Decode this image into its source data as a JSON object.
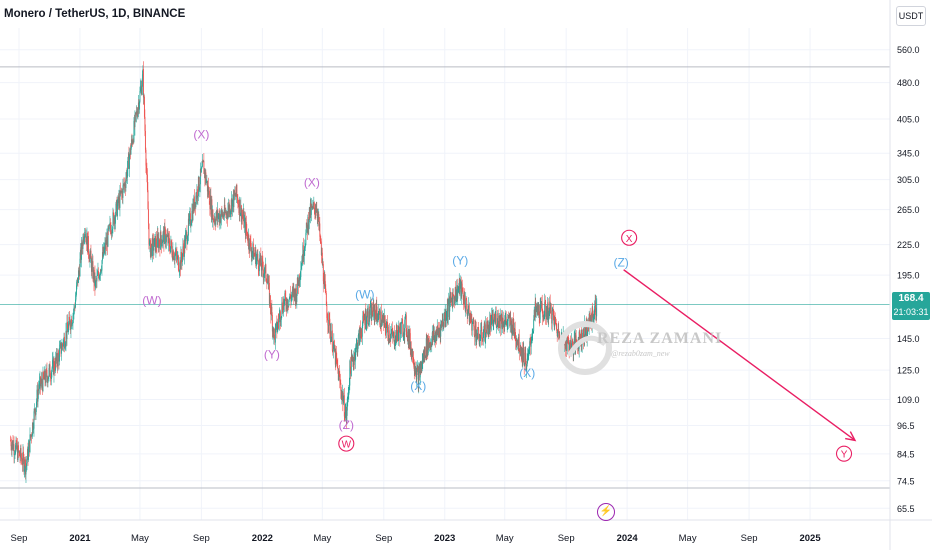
{
  "header": {
    "title": "Monero / TetherUS, 1D, BINANCE"
  },
  "price_axis": {
    "unit": "USDT",
    "ticks": [
      "560.0",
      "480.0",
      "405.0",
      "345.0",
      "305.0",
      "265.0",
      "225.0",
      "195.0",
      "145.0",
      "125.0",
      "109.0",
      "96.5",
      "84.5",
      "74.5",
      "65.5"
    ],
    "tick_values": [
      560,
      480,
      405,
      345,
      305,
      265,
      225,
      195,
      145,
      125,
      109,
      96.5,
      84.5,
      74.5,
      65.5
    ]
  },
  "time_axis": {
    "labels": [
      "Sep",
      "2021",
      "May",
      "Sep",
      "2022",
      "May",
      "Sep",
      "2023",
      "May",
      "Sep",
      "2024",
      "May",
      "Sep",
      "2025"
    ],
    "bold": [
      false,
      true,
      false,
      false,
      true,
      false,
      false,
      true,
      false,
      false,
      true,
      false,
      false,
      true
    ]
  },
  "last_price": {
    "value": "168.4",
    "countdown": "21:03:31",
    "number": 168.4
  },
  "watermark": {
    "title": "REZA ZAMANI",
    "subtitle": "@rezab0zam_new"
  },
  "colors": {
    "up": "#26a69a",
    "down": "#ef5350",
    "pink": "#e91e63",
    "blue": "#42a5f5",
    "purple": "#ab47bc"
  },
  "chart_data": {
    "type": "candlestick",
    "symbol": "XMRUSDT",
    "y_scale": "log",
    "ylim": [
      62,
      620
    ],
    "x_range": [
      "2020-07-25",
      "2025-06-10"
    ],
    "horizontal_levels": [
      517,
      170,
      72
    ],
    "price_path": [
      [
        "2020-08-15",
        90
      ],
      [
        "2020-09-15",
        80
      ],
      [
        "2020-10-10",
        115
      ],
      [
        "2020-11-15",
        130
      ],
      [
        "2020-12-20",
        165
      ],
      [
        "2021-01-10",
        245
      ],
      [
        "2021-02-01",
        185
      ],
      [
        "2021-03-01",
        240
      ],
      [
        "2021-04-01",
        300
      ],
      [
        "2021-05-07",
        495
      ],
      [
        "2021-05-20",
        220
      ],
      [
        "2021-06-20",
        235
      ],
      [
        "2021-07-20",
        205
      ],
      [
        "2021-08-20",
        280
      ],
      [
        "2021-09-05",
        325
      ],
      [
        "2021-09-25",
        255
      ],
      [
        "2021-10-20",
        260
      ],
      [
        "2021-11-10",
        285
      ],
      [
        "2021-12-10",
        220
      ],
      [
        "2022-01-10",
        195
      ],
      [
        "2022-01-25",
        145
      ],
      [
        "2022-02-10",
        170
      ],
      [
        "2022-03-10",
        180
      ],
      [
        "2022-04-05",
        260
      ],
      [
        "2022-04-20",
        270
      ],
      [
        "2022-05-10",
        165
      ],
      [
        "2022-06-18",
        100
      ],
      [
        "2022-06-25",
        125
      ],
      [
        "2022-07-25",
        160
      ],
      [
        "2022-08-15",
        165
      ],
      [
        "2022-09-20",
        145
      ],
      [
        "2022-10-15",
        155
      ],
      [
        "2022-11-09",
        120
      ],
      [
        "2022-11-25",
        140
      ],
      [
        "2022-12-20",
        150
      ],
      [
        "2023-01-15",
        175
      ],
      [
        "2023-02-01",
        185
      ],
      [
        "2023-02-20",
        160
      ],
      [
        "2023-03-10",
        145
      ],
      [
        "2023-04-15",
        160
      ],
      [
        "2023-05-15",
        155
      ],
      [
        "2023-06-15",
        128
      ],
      [
        "2023-07-01",
        165
      ],
      [
        "2023-08-01",
        165
      ],
      [
        "2023-08-20",
        145
      ],
      [
        "2023-09-15",
        140
      ],
      [
        "2023-10-10",
        150
      ],
      [
        "2023-11-01",
        168.4
      ]
    ],
    "annotations": [
      {
        "text": "(X)",
        "date": "2021-09-01",
        "price": 370,
        "color": "purple"
      },
      {
        "text": "(W)",
        "date": "2021-05-25",
        "price": 170,
        "color": "purple"
      },
      {
        "text": "(X)",
        "date": "2022-04-10",
        "price": 295,
        "color": "purple"
      },
      {
        "text": "(Y)",
        "date": "2022-01-20",
        "price": 132,
        "color": "purple"
      },
      {
        "text": "(W)",
        "date": "2022-07-25",
        "price": 175,
        "color": "blue"
      },
      {
        "text": "(Z)",
        "date": "2022-06-18",
        "price": 95,
        "color": "purple"
      },
      {
        "text": "W",
        "date": "2022-06-18",
        "price": 87,
        "color": "pink",
        "circled": true
      },
      {
        "text": "(X)",
        "date": "2022-11-09",
        "price": 114,
        "color": "blue"
      },
      {
        "text": "(Y)",
        "date": "2023-02-01",
        "price": 205,
        "color": "blue"
      },
      {
        "text": "(X)",
        "date": "2023-06-15",
        "price": 121,
        "color": "blue"
      },
      {
        "text": "(Z)",
        "date": "2023-12-20",
        "price": 203,
        "color": "blue"
      },
      {
        "text": "X",
        "date": "2024-01-05",
        "price": 228,
        "color": "pink",
        "circled": true
      },
      {
        "text": "Y",
        "date": "2025-03-10",
        "price": 83,
        "color": "pink",
        "circled": true
      }
    ],
    "projection": {
      "from": [
        "2023-12-25",
        200
      ],
      "to": [
        "2025-04-01",
        90
      ],
      "color": "pink"
    }
  }
}
